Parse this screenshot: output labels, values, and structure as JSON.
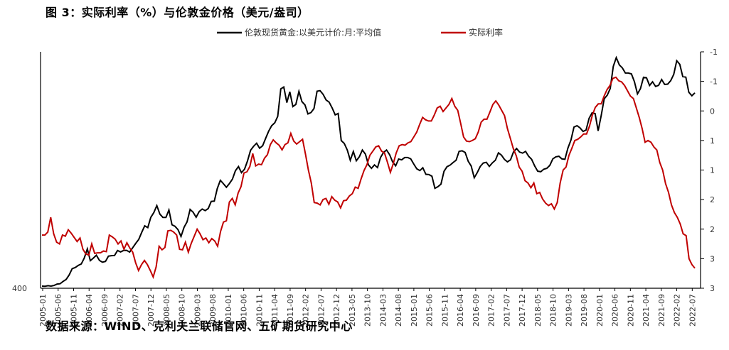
{
  "title": "图 3：实际利率（%）与伦敦金价格（美元/盎司）",
  "source": "数据来源：WIND、克利夫兰联储官网、五矿期货研究中心",
  "chart_data": {
    "type": "line",
    "title": "图 3：实际利率（%）与伦敦金价格（美元/盎司）",
    "legend_position": "top",
    "grid": false,
    "x_tick_labels": [
      "2005-01",
      "2005-06",
      "2005-11",
      "2006-04",
      "2006-09",
      "2007-02",
      "2007-07",
      "2007-12",
      "2008-05",
      "2008-10",
      "2009-03",
      "2009-08",
      "2010-01",
      "2010-06",
      "2010-11",
      "2011-04",
      "2011-09",
      "2012-02",
      "2012-07",
      "2012-12",
      "2013-05",
      "2013-10",
      "2014-03",
      "2014-08",
      "2015-01",
      "2015-06",
      "2015-11",
      "2016-04",
      "2016-09",
      "2017-02",
      "2017-07",
      "2017-12",
      "2018-05",
      "2018-10",
      "2019-03",
      "2019-08",
      "2020-01",
      "2020-06",
      "2020-11",
      "2021-04",
      "2021-09",
      "2022-02",
      "2022-07"
    ],
    "left_axis": {
      "bottom_label": "400"
    },
    "right_axis": {
      "tick_labels": [
        "-1",
        "-1",
        "0",
        "1",
        "1",
        "2",
        "2",
        "3",
        "3"
      ],
      "min": -1.5,
      "max": 2.5,
      "inverted": true
    },
    "series": [
      {
        "name": "伦敦现货黄金:以美元计价:月:平均值",
        "color": "#000000",
        "axis": "left",
        "values": [
          424,
          423,
          427,
          424,
          429,
          438,
          440,
          456,
          469,
          500,
          542,
          550,
          564,
          574,
          614,
          676,
          596,
          614,
          633,
          598,
          586,
          591,
          627,
          630,
          631,
          665,
          655,
          665,
          666,
          654,
          683,
          713,
          739,
          788,
          832,
          820,
          889,
          922,
          969,
          911,
          889,
          889,
          939,
          839,
          829,
          806,
          760,
          822,
          859,
          943,
          924,
          890,
          928,
          946,
          935,
          949,
          997,
          999,
          1084,
          1140,
          1118,
          1093,
          1118,
          1148,
          1205,
          1233,
          1192,
          1215,
          1271,
          1343,
          1370,
          1391,
          1357,
          1374,
          1424,
          1473,
          1510,
          1529,
          1573,
          1759,
          1772,
          1666,
          1739,
          1639,
          1654,
          1742,
          1673,
          1650,
          1589,
          1599,
          1626,
          1743,
          1747,
          1722,
          1684,
          1669,
          1630,
          1583,
          1592,
          1409,
          1390,
          1345,
          1276,
          1335,
          1272,
          1300,
          1345,
          1317,
          1245,
          1221,
          1244,
          1226,
          1294,
          1329,
          1345,
          1314,
          1265,
          1238,
          1284,
          1279,
          1294,
          1294,
          1285,
          1250,
          1218,
          1206,
          1225,
          1181,
          1179,
          1168,
          1086,
          1097,
          1114,
          1201,
          1232,
          1243,
          1260,
          1276,
          1336,
          1340,
          1329,
          1269,
          1237,
          1157,
          1192,
          1234,
          1257,
          1262,
          1234,
          1258,
          1276,
          1326,
          1311,
          1281,
          1265,
          1279,
          1332,
          1355,
          1331,
          1324,
          1336,
          1303,
          1282,
          1237,
          1202,
          1198,
          1215,
          1221,
          1241,
          1285,
          1299,
          1303,
          1285,
          1282,
          1358,
          1413,
          1500,
          1510,
          1495,
          1471,
          1480,
          1560,
          1597,
          1591,
          1475,
          1578,
          1691,
          1716,
          1761,
          1911,
          1970,
          1921,
          1901,
          1866,
          1866,
          1860,
          1808,
          1725,
          1760,
          1837,
          1834,
          1782,
          1807,
          1775,
          1783,
          1822,
          1789,
          1791,
          1814,
          1857,
          1949,
          1925,
          1842,
          1838,
          1736,
          1712,
          1732
        ],
        "bottom_value_label": 400
      },
      {
        "name": "实际利率",
        "color": "#c00000",
        "axis": "right",
        "values": [
          1.6,
          1.6,
          1.55,
          1.3,
          1.58,
          1.72,
          1.75,
          1.6,
          1.62,
          1.51,
          1.57,
          1.64,
          1.71,
          1.65,
          1.84,
          1.92,
          1.94,
          1.75,
          1.91,
          1.9,
          1.9,
          1.87,
          1.88,
          1.6,
          1.63,
          1.67,
          1.75,
          1.7,
          1.84,
          1.73,
          1.82,
          1.89,
          2.07,
          2.2,
          2.1,
          2.03,
          2.1,
          2.2,
          2.31,
          2.14,
          1.79,
          1.85,
          1.81,
          1.53,
          1.52,
          1.55,
          1.6,
          1.84,
          1.85,
          1.72,
          1.89,
          1.74,
          1.62,
          1.5,
          1.58,
          1.68,
          1.65,
          1.73,
          1.66,
          1.7,
          1.79,
          1.54,
          1.38,
          1.36,
          1.04,
          0.98,
          1.09,
          0.89,
          0.78,
          0.55,
          0.53,
          0.44,
          0.22,
          0.43,
          0.4,
          0.41,
          0.3,
          0.24,
          0.07,
          -0.01,
          0.04,
          0.08,
          0.16,
          0.07,
          0.04,
          -0.12,
          0.01,
          0.06,
          0.02,
          -0.02,
          0.23,
          0.5,
          0.72,
          1.05,
          1.06,
          1.09,
          1.0,
          0.98,
          1.08,
          0.95,
          1.01,
          1.04,
          1.14,
          1.02,
          1.01,
          0.94,
          0.9,
          0.79,
          0.81,
          0.65,
          0.51,
          0.41,
          0.25,
          0.18,
          0.11,
          0.09,
          0.18,
          0.21,
          0.37,
          0.54,
          0.39,
          0.21,
          0.09,
          0.07,
          0.08,
          0.04,
          0.02,
          -0.06,
          -0.14,
          -0.27,
          -0.39,
          -0.35,
          -0.33,
          -0.33,
          -0.43,
          -0.55,
          -0.58,
          -0.49,
          -0.55,
          -0.61,
          -0.71,
          -0.58,
          -0.51,
          -0.29,
          -0.06,
          0.01,
          0.02,
          0.0,
          -0.03,
          -0.14,
          -0.31,
          -0.36,
          -0.36,
          -0.48,
          -0.61,
          -0.67,
          -0.6,
          -0.51,
          -0.42,
          -0.2,
          -0.03,
          0.14,
          0.26,
          0.45,
          0.52,
          0.68,
          0.72,
          0.8,
          0.72,
          0.9,
          0.88,
          0.99,
          1.06,
          1.1,
          1.07,
          1.16,
          1.05,
          0.72,
          0.5,
          0.45,
          0.25,
          0.13,
          0.0,
          -0.02,
          -0.06,
          -0.11,
          -0.11,
          -0.24,
          -0.43,
          -0.56,
          -0.62,
          -0.62,
          -0.75,
          -0.86,
          -0.93,
          -1.05,
          -1.07,
          -1.01,
          -0.99,
          -0.93,
          -0.84,
          -0.75,
          -0.71,
          -0.55,
          -0.39,
          -0.2,
          0.03,
          0.0,
          0.03,
          0.11,
          0.16,
          0.37,
          0.5,
          0.73,
          0.88,
          1.09,
          1.22,
          1.3,
          1.41,
          1.58,
          1.61,
          2.0,
          2.1,
          2.16
        ]
      }
    ]
  }
}
